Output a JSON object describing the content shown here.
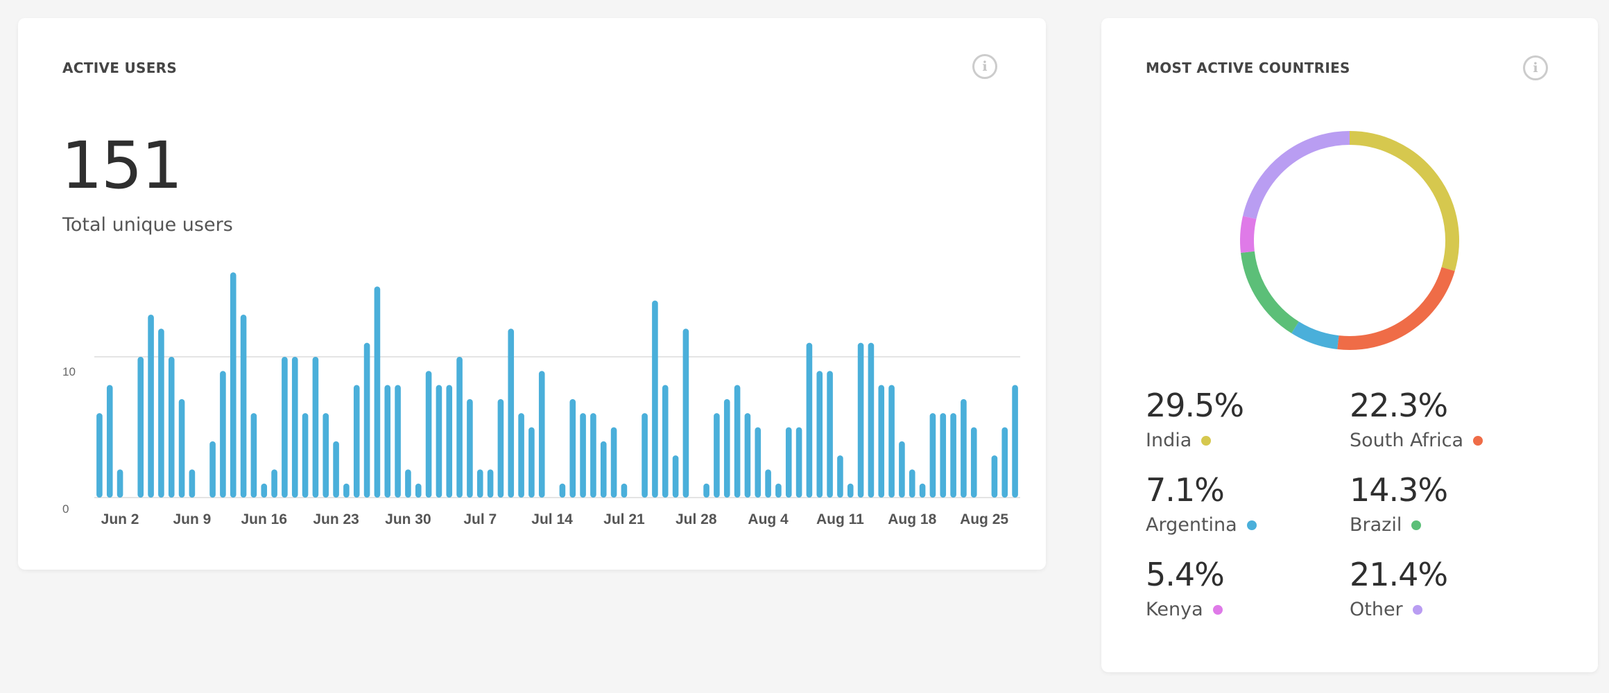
{
  "active_users": {
    "title": "ACTIVE USERS",
    "total": "151",
    "subtitle": "Total unique users"
  },
  "countries": {
    "title": "MOST ACTIVE COUNTRIES",
    "items": [
      {
        "pct": "29.5%",
        "name": "India",
        "color": "#d6c84e"
      },
      {
        "pct": "22.3%",
        "name": "South Africa",
        "color": "#ef6c47"
      },
      {
        "pct": "7.1%",
        "name": "Argentina",
        "color": "#4aafda"
      },
      {
        "pct": "14.3%",
        "name": "Brazil",
        "color": "#5cbf78"
      },
      {
        "pct": "5.4%",
        "name": "Kenya",
        "color": "#df7ae8"
      },
      {
        "pct": "21.4%",
        "name": "Other",
        "color": "#b99df2"
      }
    ]
  },
  "icons": {
    "info": "info-icon"
  },
  "chart_data": [
    {
      "type": "bar",
      "color": "#4aafda",
      "ylim": [
        0,
        16
      ],
      "yticks": [
        0,
        10
      ],
      "grid": true,
      "x_tick_labels": [
        "Jun 2",
        "Jun 9",
        "Jun 16",
        "Jun 23",
        "Jun 30",
        "Jul 7",
        "Jul 14",
        "Jul 21",
        "Jul 28",
        "Aug 4",
        "Aug 11",
        "Aug 18",
        "Aug 25"
      ],
      "x_tick_days": [
        2,
        9,
        16,
        23,
        30,
        37,
        44,
        51,
        58,
        65,
        72,
        79,
        86
      ],
      "values": [
        6,
        8,
        2,
        0,
        10,
        13,
        12,
        10,
        7,
        2,
        0,
        4,
        9,
        16,
        13,
        6,
        1,
        2,
        10,
        10,
        6,
        10,
        6,
        4,
        1,
        8,
        11,
        15,
        8,
        8,
        2,
        1,
        9,
        8,
        8,
        10,
        7,
        2,
        2,
        7,
        12,
        6,
        5,
        9,
        0,
        1,
        7,
        6,
        6,
        4,
        5,
        1,
        0,
        6,
        14,
        8,
        3,
        12,
        0,
        1,
        6,
        7,
        8,
        6,
        5,
        2,
        1,
        5,
        5,
        11,
        9,
        9,
        3,
        1,
        11,
        11,
        8,
        8,
        4,
        2,
        1,
        6,
        6,
        6,
        7,
        5,
        0,
        3,
        5,
        8
      ]
    },
    {
      "type": "pie",
      "style": "donut",
      "slices": [
        {
          "label": "India",
          "value": 29.5
        },
        {
          "label": "South Africa",
          "value": 22.3
        },
        {
          "label": "Argentina",
          "value": 7.1
        },
        {
          "label": "Brazil",
          "value": 14.3
        },
        {
          "label": "Kenya",
          "value": 5.4
        },
        {
          "label": "Other",
          "value": 21.4
        }
      ]
    }
  ]
}
